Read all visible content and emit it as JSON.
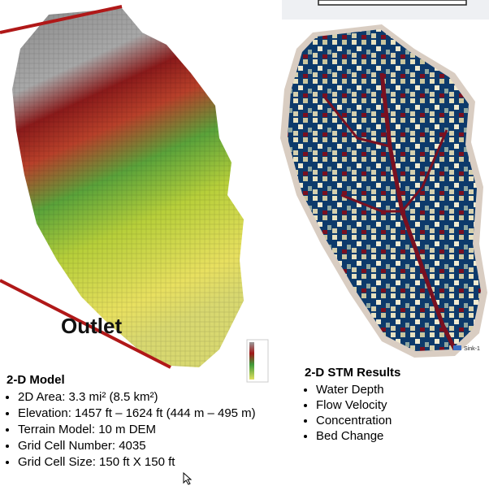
{
  "left_panel": {
    "map_label": "Outlet",
    "heading": "2-D Model",
    "bullets": [
      "2D Area: 3.3 mi² (8.5 km²)",
      "Elevation: 1457 ft – 1624 ft (444 m – 495 m)",
      "Terrain Model: 10 m DEM",
      "Grid Cell Number: 4035",
      "Grid Cell Size: 150 ft X 150 ft"
    ]
  },
  "right_panel": {
    "map_label": "Sink-1",
    "heading": "2-D STM Results",
    "bullets": [
      "Water Depth",
      "Flow Velocity",
      "Concentration",
      "Bed Change"
    ]
  }
}
